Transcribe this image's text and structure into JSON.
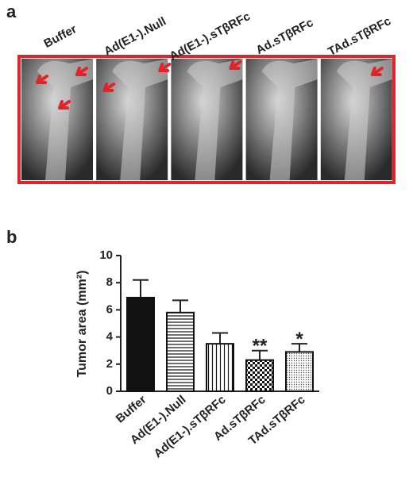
{
  "panel_a": {
    "label": "a",
    "columns": [
      "Buffer",
      "Ad(E1-).Null",
      "Ad(E1-).sTβRFc",
      "Ad.sTβRFc",
      "TAd.sTβRFc"
    ]
  },
  "chart_data": {
    "type": "bar",
    "panel_label": "b",
    "y_label": "Tumor area (mm²)",
    "categories": [
      "Buffer",
      "Ad(E1-).Null",
      "Ad(E1-).sTβRFc",
      "Ad.sTβRFc",
      "TAd.sTβRFc"
    ],
    "values": [
      6.9,
      5.8,
      3.5,
      2.3,
      2.9
    ],
    "errors": [
      1.3,
      0.9,
      0.8,
      0.7,
      0.6
    ],
    "annotations": [
      null,
      null,
      null,
      "**",
      "*"
    ],
    "patterns": [
      "solid",
      "horizontal",
      "vertical",
      "checker",
      "dots"
    ],
    "color": "#111111",
    "ylim": [
      0,
      10
    ],
    "yticks": [
      0,
      2,
      4,
      6,
      8,
      10
    ]
  }
}
